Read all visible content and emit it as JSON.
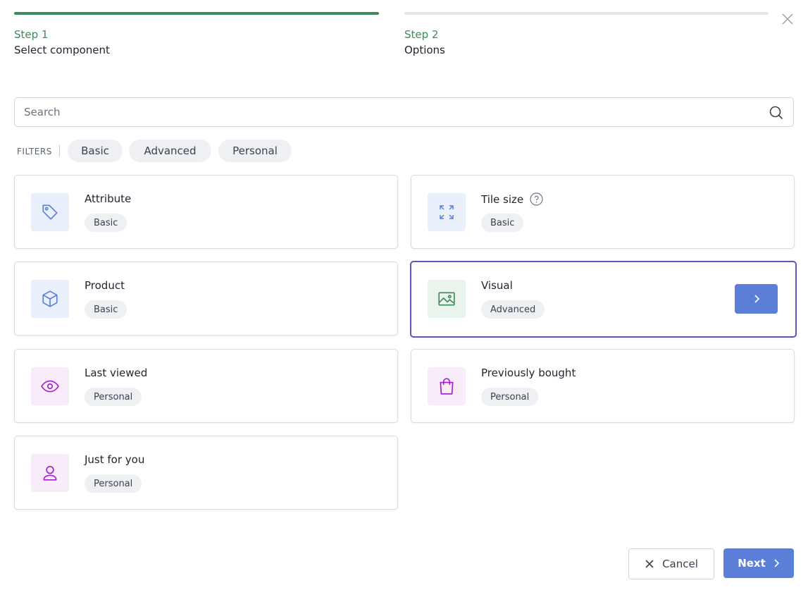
{
  "steps": [
    {
      "label": "Step 1",
      "title": "Select component"
    },
    {
      "label": "Step 2",
      "title": "Options"
    }
  ],
  "search": {
    "placeholder": "Search"
  },
  "filters": {
    "label": "FILTERS",
    "options": [
      "Basic",
      "Advanced",
      "Personal"
    ]
  },
  "components": [
    {
      "name": "Attribute",
      "tag": "Basic"
    },
    {
      "name": "Tile size",
      "tag": "Basic"
    },
    {
      "name": "Product",
      "tag": "Basic"
    },
    {
      "name": "Visual",
      "tag": "Advanced"
    },
    {
      "name": "Last viewed",
      "tag": "Personal"
    },
    {
      "name": "Previously bought",
      "tag": "Personal"
    },
    {
      "name": "Just for you",
      "tag": "Personal"
    }
  ],
  "actions": {
    "cancel": "Cancel",
    "next": "Next"
  }
}
